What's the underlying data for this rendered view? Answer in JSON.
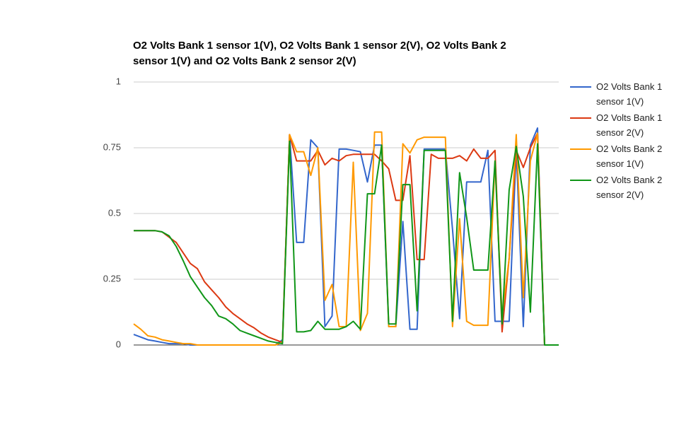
{
  "chart_data": {
    "type": "line",
    "title": "O2 Volts Bank 1 sensor 1(V), O2 Volts Bank 1 sensor 2(V), O2 Volts Bank 2 sensor 1(V) and O2 Volts Bank 2 sensor 2(V)",
    "categories": [
      null,
      null,
      null,
      null,
      null,
      null,
      null,
      null,
      null,
      null,
      null,
      null,
      null,
      null,
      null,
      null,
      null,
      null,
      null,
      null,
      null,
      null,
      null,
      null,
      null,
      null,
      null,
      null,
      null,
      null,
      null,
      null,
      null,
      null,
      null,
      null,
      null,
      null,
      null,
      null,
      null,
      null,
      null,
      null,
      null,
      null,
      null,
      null,
      null,
      null,
      null,
      null,
      null,
      null,
      null,
      null,
      null,
      null,
      null,
      null,
      null
    ],
    "ylim": [
      0,
      1
    ],
    "yticks": [
      0,
      0.25,
      0.5,
      0.75,
      1
    ],
    "grid": true,
    "legend": "right",
    "series": [
      {
        "name": "O2 Volts Bank 1 sensor 1(V)",
        "color": "#3366cc",
        "values": [
          0.04,
          0.03,
          0.02,
          0.015,
          0.01,
          0.005,
          0.005,
          0.005,
          0,
          0,
          0,
          0,
          0,
          0,
          0,
          0,
          0,
          0,
          0,
          0,
          0,
          0.02,
          0.8,
          0.39,
          0.39,
          0.78,
          0.75,
          0.07,
          0.11,
          0.745,
          0.745,
          0.74,
          0.735,
          0.62,
          0.76,
          0.76,
          0.07,
          0.07,
          0.47,
          0.06,
          0.06,
          0.745,
          0.745,
          0.745,
          0.745,
          0.44,
          0.1,
          0.62,
          0.62,
          0.62,
          0.74,
          0.09,
          0.09,
          0.09,
          0.745,
          0.07,
          0.76,
          0.825,
          0,
          0,
          0
        ]
      },
      {
        "name": "O2 Volts Bank 1 sensor 2(V)",
        "color": "#dc3912",
        "values": [
          0.435,
          0.435,
          0.435,
          0.435,
          0.43,
          0.41,
          0.39,
          0.35,
          0.31,
          0.29,
          0.24,
          0.21,
          0.18,
          0.145,
          0.12,
          0.1,
          0.08,
          0.065,
          0.045,
          0.03,
          0.02,
          0.01,
          0.8,
          0.7,
          0.7,
          0.7,
          0.74,
          0.685,
          0.71,
          0.7,
          0.72,
          0.725,
          0.725,
          0.725,
          0.725,
          0.7,
          0.67,
          0.55,
          0.55,
          0.72,
          0.325,
          0.325,
          0.725,
          0.71,
          0.71,
          0.71,
          0.72,
          0.7,
          0.745,
          0.71,
          0.71,
          0.74,
          0.05,
          0.33,
          0.74,
          0.675,
          0.75,
          0.805,
          0,
          0,
          0
        ]
      },
      {
        "name": "O2 Volts Bank 2 sensor 1(V)",
        "color": "#ff9900",
        "values": [
          0.08,
          0.06,
          0.035,
          0.03,
          0.02,
          0.015,
          0.01,
          0.005,
          0.005,
          0,
          0,
          0,
          0,
          0,
          0,
          0,
          0,
          0,
          0,
          0,
          0,
          0.01,
          0.8,
          0.735,
          0.735,
          0.645,
          0.75,
          0.17,
          0.23,
          0.07,
          0.07,
          0.695,
          0.055,
          0.12,
          0.81,
          0.81,
          0.07,
          0.07,
          0.765,
          0.73,
          0.78,
          0.79,
          0.79,
          0.79,
          0.79,
          0.07,
          0.48,
          0.09,
          0.075,
          0.075,
          0.075,
          0.7,
          0.11,
          0.33,
          0.8,
          0.18,
          0.7,
          0.805,
          0,
          0,
          0
        ]
      },
      {
        "name": "O2 Volts Bank 2 sensor 2(V)",
        "color": "#109618",
        "values": [
          0.435,
          0.435,
          0.435,
          0.435,
          0.43,
          0.415,
          0.375,
          0.32,
          0.26,
          0.22,
          0.18,
          0.15,
          0.11,
          0.1,
          0.08,
          0.055,
          0.045,
          0.035,
          0.025,
          0.015,
          0.01,
          0.005,
          0.775,
          0.05,
          0.05,
          0.055,
          0.09,
          0.06,
          0.06,
          0.06,
          0.07,
          0.09,
          0.06,
          0.575,
          0.575,
          0.76,
          0.08,
          0.08,
          0.61,
          0.61,
          0.13,
          0.74,
          0.74,
          0.74,
          0.74,
          0.09,
          0.655,
          0.485,
          0.285,
          0.285,
          0.285,
          0.7,
          0.08,
          0.59,
          0.755,
          0.565,
          0.125,
          0.765,
          0,
          0,
          0
        ]
      }
    ]
  }
}
